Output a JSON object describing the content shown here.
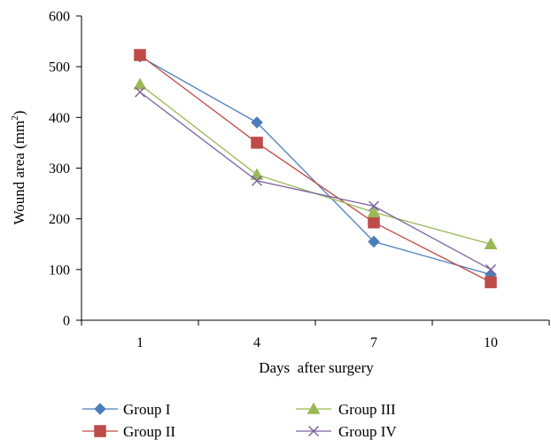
{
  "chart_data": {
    "type": "line",
    "title": "",
    "xlabel": "Days  after surgery",
    "ylabel": "Wound area (mm",
    "ylabel_sup": "2",
    "ylabel_close": ")",
    "categories": [
      "1",
      "4",
      "7",
      "10"
    ],
    "ylim": [
      0,
      600
    ],
    "yticks": [
      "0",
      "100",
      "200",
      "300",
      "400",
      "500",
      "600"
    ],
    "grid": false,
    "legend_position": "bottom",
    "series": [
      {
        "name": "Group I",
        "values": [
          520,
          390,
          155,
          90
        ],
        "color": "#4a7ebb",
        "marker": "diamond"
      },
      {
        "name": "Group II",
        "values": [
          523,
          350,
          193,
          75
        ],
        "color": "#be4b48",
        "marker": "square"
      },
      {
        "name": "Group III",
        "values": [
          465,
          287,
          213,
          150
        ],
        "color": "#98b954",
        "marker": "triangle"
      },
      {
        "name": "Group IV",
        "values": [
          450,
          275,
          225,
          100
        ],
        "color": "#7d60a0",
        "marker": "x"
      }
    ]
  }
}
